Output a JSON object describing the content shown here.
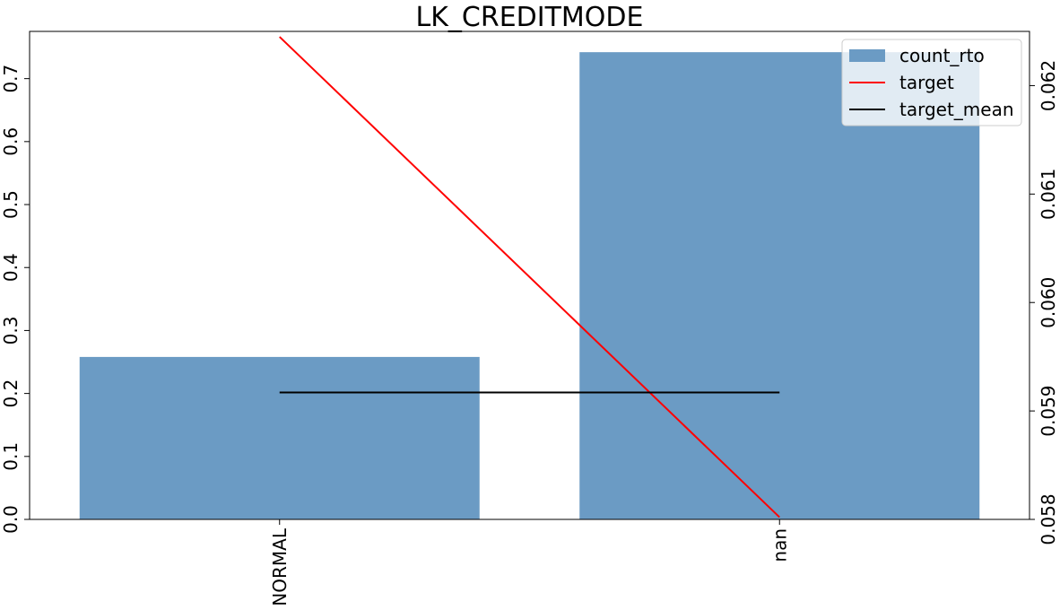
{
  "chart_data": {
    "type": "bar",
    "title": "LK_CREDITMODE",
    "categories": [
      "NORMAL",
      "nan"
    ],
    "series": [
      {
        "name": "count_rto",
        "kind": "bar",
        "axis": "left",
        "values": [
          0.258,
          0.742
        ],
        "color": "#6b9bc4"
      },
      {
        "name": "target",
        "kind": "line",
        "axis": "right",
        "values": [
          0.06245,
          0.05802
        ],
        "color": "#ff0000"
      },
      {
        "name": "target_mean",
        "kind": "line",
        "axis": "right",
        "values": [
          0.05917,
          0.05917
        ],
        "color": "#000000"
      }
    ],
    "y_left": {
      "lim": [
        0.0,
        0.775
      ],
      "ticks": [
        0.0,
        0.1,
        0.2,
        0.3,
        0.4,
        0.5,
        0.6,
        0.7
      ],
      "tick_labels": [
        "0.0",
        "0.1",
        "0.2",
        "0.3",
        "0.4",
        "0.5",
        "0.6",
        "0.7"
      ]
    },
    "y_right": {
      "lim": [
        0.058,
        0.0625
      ],
      "ticks": [
        0.058,
        0.059,
        0.06,
        0.061,
        0.062
      ],
      "tick_labels": [
        "0.058",
        "0.059",
        "0.060",
        "0.061",
        "0.062"
      ]
    },
    "legend": {
      "placement": "top-right",
      "entries": [
        "count_rto",
        "target",
        "target_mean"
      ]
    },
    "grid": false
  }
}
